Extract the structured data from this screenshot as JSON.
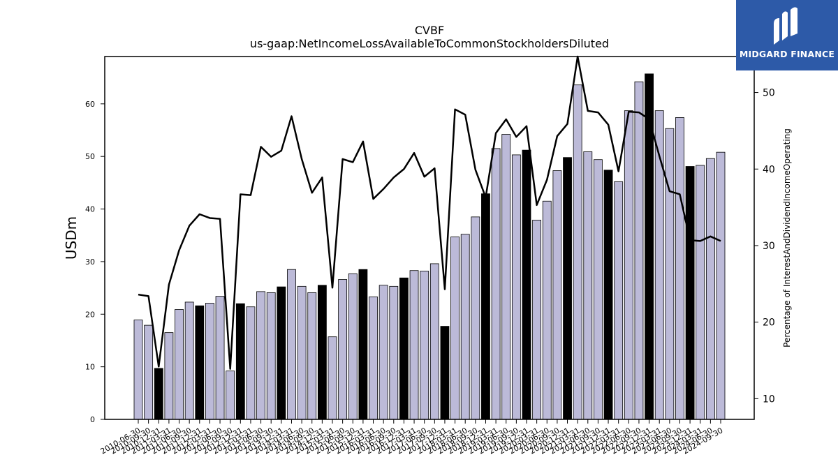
{
  "chart_data": {
    "type": "bar+line",
    "title": "CVBF",
    "subtitle": "us-gaap:NetIncomeLossAvailableToCommonStockholdersDiluted",
    "ylabel_left": "USDm",
    "ylabel_right": "Percentage of InterestAndDividendIncomeOperating",
    "ylim_left": [
      0,
      69
    ],
    "ylim_right": [
      7.3,
      54.7
    ],
    "yticks_left": [
      0,
      10,
      20,
      30,
      40,
      50,
      60
    ],
    "yticks_right": [
      10,
      20,
      30,
      40,
      50
    ],
    "grid": false,
    "colors": {
      "bar": "#bcbad8",
      "bar_highlight": "#000000",
      "line": "#000000"
    },
    "categories": [
      "2010-06-30",
      "2010-09-30",
      "2010-12-31",
      "2011-03-31",
      "2011-06-30",
      "2011-09-30",
      "2011-12-31",
      "2012-03-31",
      "2012-06-30",
      "2012-09-30",
      "2012-12-31",
      "2013-03-31",
      "2013-06-30",
      "2013-09-30",
      "2013-12-31",
      "2014-03-31",
      "2014-06-30",
      "2014-09-30",
      "2014-12-31",
      "2015-03-31",
      "2015-06-30",
      "2015-09-30",
      "2015-12-31",
      "2016-03-31",
      "2016-06-30",
      "2016-09-30",
      "2016-12-31",
      "2017-03-31",
      "2017-06-30",
      "2017-09-30",
      "2017-12-31",
      "2018-03-31",
      "2018-06-30",
      "2018-09-30",
      "2018-12-31",
      "2019-03-31",
      "2019-06-30",
      "2019-09-30",
      "2019-12-31",
      "2020-03-31",
      "2020-06-30",
      "2020-09-30",
      "2020-12-31",
      "2021-03-31",
      "2021-06-30",
      "2021-09-30",
      "2021-12-31",
      "2022-03-31",
      "2022-06-30",
      "2022-09-30",
      "2022-12-31",
      "2023-03-31",
      "2023-06-30",
      "2023-09-30",
      "2023-12-31",
      "2024-03-31",
      "2024-06-30",
      "2024-09-30"
    ],
    "tick_labels": [
      "2010-06-30",
      "2010-09-30",
      "2010-12-31",
      "2011-03-31",
      "2011-06-30",
      "2011-09-30",
      "2011-12-31",
      "2012-03-31",
      "2012-06-30",
      "2012-09-30",
      "2012-12-31",
      "2013-03-31",
      "2013-06-30",
      "2013-09-30",
      "2013-12-31",
      "2014-03-31",
      "2014-06-30",
      "2014-09-30",
      "2014-12-31",
      "2015-03-31",
      "2015-06-30",
      "2015-09-30",
      "2015-12-31",
      "2016-03-31",
      "2016-06-30",
      "2016-09-30",
      "2016-12-31",
      "2017-03-31",
      "2017-06-30",
      "2017-09-30",
      "2017-12-31",
      "2018-03-31",
      "2018-06-30",
      "2018-09-30",
      "2018-12-31",
      "2019-03-31",
      "2019-06-30",
      "2019-09-30",
      "2019-12-31",
      "2020-03-31",
      "2020-06-30",
      "2020-09-30",
      "2020-12-31",
      "2021-03-31",
      "2021-06-30",
      "2021-09-30",
      "2021-12-31",
      "2022-03-31",
      "2022-06-30",
      "2022-09-30",
      "2022-12-31",
      "2023-03-31",
      "2023-06-30",
      "2023-09-30",
      "2023-12-31",
      "2024-03-31",
      "2024-06-30",
      "2024-09-30"
    ],
    "bar_values": [
      18.9,
      17.9,
      9.7,
      16.5,
      20.9,
      22.3,
      21.6,
      22.1,
      23.4,
      9.2,
      22.0,
      21.4,
      24.3,
      24.1,
      25.2,
      28.5,
      25.3,
      24.1,
      25.5,
      15.7,
      26.6,
      27.7,
      28.5,
      23.3,
      25.5,
      25.3,
      26.9,
      28.3,
      28.2,
      29.6,
      17.7,
      34.7,
      35.2,
      38.5,
      42.9,
      51.5,
      54.2,
      50.3,
      51.2,
      37.9,
      41.5,
      47.3,
      49.8,
      63.6,
      50.9,
      49.4,
      47.4,
      45.2,
      58.7,
      64.2,
      65.7,
      58.7,
      55.3,
      57.4,
      48.1,
      48.3,
      49.6,
      50.8
    ],
    "highlight": [
      false,
      false,
      true,
      false,
      false,
      false,
      true,
      false,
      false,
      false,
      true,
      false,
      false,
      false,
      true,
      false,
      false,
      false,
      true,
      false,
      false,
      false,
      true,
      false,
      false,
      false,
      true,
      false,
      false,
      false,
      true,
      false,
      false,
      false,
      true,
      false,
      false,
      false,
      true,
      false,
      false,
      false,
      true,
      false,
      false,
      false,
      true,
      false,
      false,
      false,
      true,
      false,
      false,
      false,
      true,
      false,
      false,
      false
    ],
    "line_values": [
      23.6,
      23.4,
      14.2,
      24.9,
      29.4,
      32.6,
      34.1,
      33.6,
      33.5,
      13.9,
      36.7,
      36.6,
      42.9,
      41.6,
      42.4,
      46.9,
      41.3,
      36.9,
      38.9,
      24.5,
      41.3,
      40.9,
      43.6,
      36.1,
      37.4,
      38.9,
      40.0,
      42.1,
      39.0,
      40.1,
      24.3,
      47.8,
      47.1,
      39.9,
      36.3,
      44.7,
      46.5,
      44.2,
      45.6,
      35.3,
      38.6,
      44.3,
      45.9,
      54.7,
      47.6,
      47.4,
      45.8,
      39.7,
      47.5,
      47.4,
      46.5,
      41.7,
      37.1,
      36.7,
      30.7,
      30.6,
      31.2,
      30.6
    ]
  },
  "brand": {
    "name": "MIDGARD FINANCE",
    "icon": "midgard-logo-icon"
  }
}
